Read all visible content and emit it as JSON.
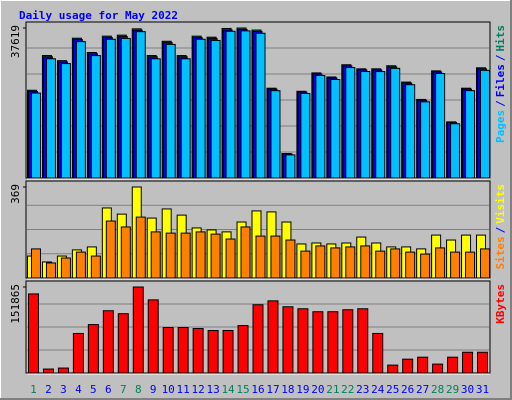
{
  "chart_data": {
    "type": "bar",
    "title": "Daily usage for May 2022",
    "categories": [
      "1",
      "2",
      "3",
      "4",
      "5",
      "6",
      "7",
      "8",
      "9",
      "10",
      "11",
      "12",
      "13",
      "14",
      "15",
      "16",
      "17",
      "18",
      "19",
      "20",
      "21",
      "22",
      "23",
      "24",
      "25",
      "26",
      "27",
      "28",
      "29",
      "30",
      "31"
    ],
    "highlighted_categories": [
      0,
      6,
      7,
      13,
      14,
      20,
      21,
      27,
      28
    ],
    "highlight_color": "#00805c",
    "category_color": "#0000ff",
    "legend_separator": "/",
    "panels": [
      {
        "ylim": [
          0,
          37619
        ],
        "yticks": [
          37619
        ],
        "grid": true,
        "series": [
          {
            "name": "Pages",
            "color": "#00c0ff",
            "values": [
              21300,
              29900,
              28700,
              34200,
              30700,
              34800,
              35000,
              36700,
              29900,
              33500,
              29900,
              34800,
              34500,
              36800,
              36900,
              36300,
              21900,
              5800,
              21200,
              25700,
              24700,
              27700,
              26700,
              26700,
              27500,
              23400,
              19100,
              26200,
              13600,
              21900,
              27000
            ]
          },
          {
            "name": "Files",
            "color": "#0000ff",
            "values": [
              21710,
              30390,
              29120,
              34700,
              31150,
              35210,
              35470,
              37050,
              30400,
              33950,
              30400,
              35210,
              34960,
              37140,
              37250,
              36750,
              22290,
              6050,
              21530,
              26090,
              25080,
              28120,
              27100,
              27100,
              27860,
              23800,
              19500,
              26600,
              13930,
              22290,
              27360
            ]
          },
          {
            "name": "Hits",
            "color": "#00805c",
            "values": [
              22008,
              30710,
              29430,
              35060,
              31477,
              35572,
              35828,
              37410,
              30710,
              34292,
              30710,
              35572,
              35316,
              37502,
              37619,
              37107,
              22520,
              6142,
              21752,
              26359,
              25335,
              28406,
              27383,
              27383,
              28150,
              24056,
              19705,
              26871,
              14075,
              22520,
              27639
            ]
          }
        ]
      },
      {
        "ylim": [
          0,
          369
        ],
        "yticks": [
          369
        ],
        "grid": true,
        "series": [
          {
            "name": "Sites",
            "color": "#ff8000",
            "values": [
              118,
              61,
              81,
              105,
              89,
              231,
              207,
              247,
              187,
              182,
              182,
              187,
              178,
              158,
              207,
              170,
              170,
              154,
              109,
              130,
              122,
              126,
              130,
              109,
              118,
              105,
              97,
              122,
              105,
              105,
              118
            ]
          },
          {
            "name": "Visits",
            "color": "#ffff00",
            "values": [
              89,
              65,
              89,
              114,
              126,
              284,
              259,
              369,
              243,
              280,
              255,
              203,
              195,
              187,
              227,
              272,
              268,
              227,
              138,
              142,
              138,
              142,
              166,
              142,
              126,
              126,
              118,
              174,
              154,
              174,
              174
            ]
          }
        ]
      },
      {
        "ylim": [
          0,
          151865
        ],
        "yticks": [
          151865
        ],
        "grid": true,
        "series": [
          {
            "name": "KBytes",
            "color": "#ff0000",
            "values": [
              139646,
              6982,
              8728,
              69823,
              85533,
              109971,
              104735,
              151865,
              129173,
              80296,
              80296,
              78551,
              75060,
              75060,
              83788,
              120445,
              127428,
              116954,
              113463,
              108226,
              108226,
              111718,
              113463,
              69823,
              13965,
              24438,
              27929,
              15710,
              27929,
              36657,
              36657
            ]
          }
        ]
      }
    ]
  }
}
